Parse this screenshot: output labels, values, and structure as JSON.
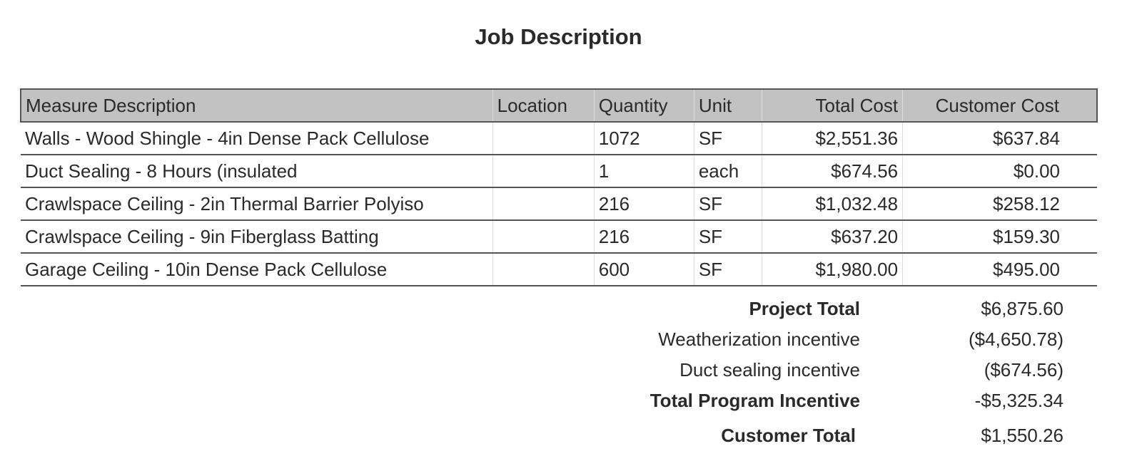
{
  "title": "Job Description",
  "columns": [
    "Measure Description",
    "Location",
    "Quantity",
    "Unit",
    "Total Cost",
    "Customer Cost"
  ],
  "rows": [
    {
      "description": "Walls - Wood Shingle - 4in Dense Pack Cellulose",
      "location": "",
      "quantity": "1072",
      "unit": "SF",
      "total_cost": "$2,551.36",
      "customer_cost": "$637.84"
    },
    {
      "description": "Duct Sealing - 8 Hours (insulated",
      "location": "",
      "quantity": "1",
      "unit": "each",
      "total_cost": "$674.56",
      "customer_cost": "$0.00"
    },
    {
      "description": "Crawlspace Ceiling - 2in Thermal Barrier Polyiso",
      "location": "",
      "quantity": "216",
      "unit": "SF",
      "total_cost": "$1,032.48",
      "customer_cost": "$258.12"
    },
    {
      "description": "Crawlspace Ceiling - 9in Fiberglass Batting",
      "location": "",
      "quantity": "216",
      "unit": "SF",
      "total_cost": "$637.20",
      "customer_cost": "$159.30"
    },
    {
      "description": "Garage Ceiling - 10in Dense Pack Cellulose",
      "location": "",
      "quantity": "600",
      "unit": "SF",
      "total_cost": "$1,980.00",
      "customer_cost": "$495.00"
    }
  ],
  "summary": [
    {
      "label": "Project Total",
      "value": "$6,875.60",
      "bold": true
    },
    {
      "label": "Weatherization incentive",
      "value": "($4,650.78)",
      "bold": false
    },
    {
      "label": "Duct sealing incentive",
      "value": "($674.56)",
      "bold": false
    },
    {
      "label": "Total Program Incentive",
      "value": "-$5,325.34",
      "bold": true
    },
    {
      "label": "Customer Total",
      "value": "$1,550.26",
      "bold": true
    }
  ]
}
